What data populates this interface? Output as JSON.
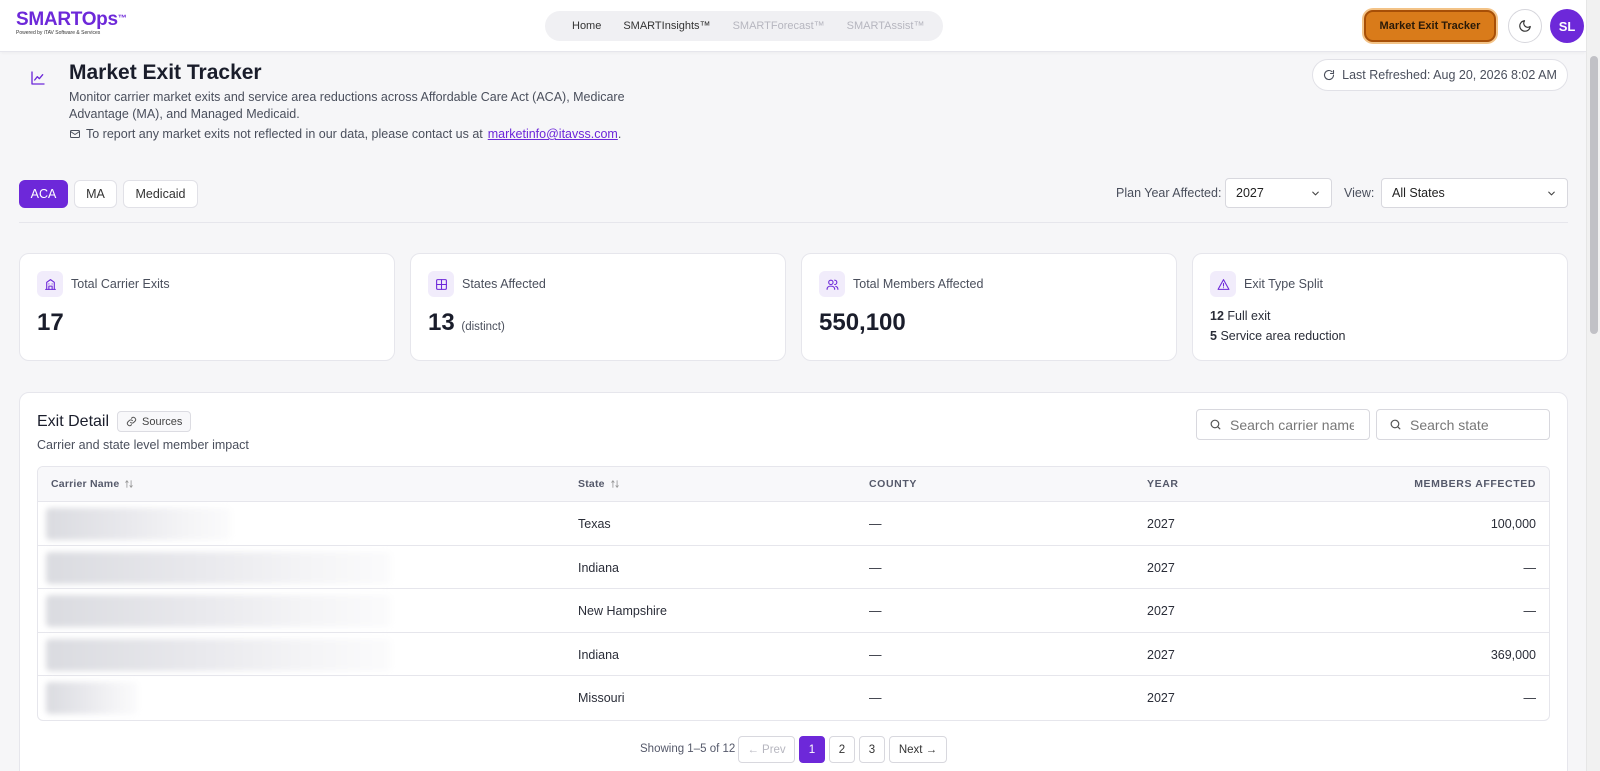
{
  "brand": {
    "name": "SMARTOps",
    "tm": "™",
    "tagline": "Powered by iTAV Software & Services"
  },
  "nav": {
    "items": [
      {
        "label": "Home",
        "muted": false
      },
      {
        "label": "SMARTInsights™",
        "muted": false
      },
      {
        "label": "SMARTForecast™",
        "muted": true
      },
      {
        "label": "SMARTAssist™",
        "muted": true
      }
    ],
    "cta_label": "Market Exit Tracker",
    "avatar_initials": "SL"
  },
  "header": {
    "title": "Market Exit Tracker",
    "description": "Monitor carrier market exits and service area reductions across Affordable Care Act (ACA), Medicare Advantage (MA), and Managed Medicaid.",
    "contact_prefix": "To report any market exits not reflected in our data, please contact us at",
    "contact_email": "marketinfo@itavss.com",
    "contact_suffix": ".",
    "last_refreshed": "Last Refreshed: Aug 20, 2026 8:02 AM"
  },
  "tabs": [
    {
      "label": "ACA",
      "active": true
    },
    {
      "label": "MA",
      "active": false
    },
    {
      "label": "Medicaid",
      "active": false
    }
  ],
  "filters": {
    "plan_year_label": "Plan Year Affected:",
    "plan_year_value": "2027",
    "view_label": "View:",
    "view_value": "All States"
  },
  "kpis": {
    "total_exits": {
      "label": "Total Carrier Exits",
      "value": "17"
    },
    "states_affected": {
      "label": "States Affected",
      "value": "13",
      "note": "(distinct)"
    },
    "members_affected": {
      "label": "Total Members Affected",
      "value": "550,100"
    },
    "exit_split": {
      "label": "Exit Type Split",
      "full_count": "12",
      "full_label": "Full exit",
      "reduction_count": "5",
      "reduction_label": "Service area reduction"
    }
  },
  "detail": {
    "title": "Exit Detail",
    "sources_label": "Sources",
    "subtitle": "Carrier and state level member impact",
    "search_carrier_placeholder": "Search carrier name",
    "search_state_placeholder": "Search state",
    "columns": {
      "carrier": "Carrier Name",
      "state": "State",
      "county": "COUNTY",
      "year": "YEAR",
      "members": "MEMBERS AFFECTED"
    },
    "rows": [
      {
        "state": "Texas",
        "county": "—",
        "year": "2027",
        "members": "100,000"
      },
      {
        "state": "Indiana",
        "county": "—",
        "year": "2027",
        "members": "—"
      },
      {
        "state": "New Hampshire",
        "county": "—",
        "year": "2027",
        "members": "—"
      },
      {
        "state": "Indiana",
        "county": "—",
        "year": "2027",
        "members": "369,000"
      },
      {
        "state": "Missouri",
        "county": "—",
        "year": "2027",
        "members": "—"
      }
    ]
  },
  "pagination": {
    "info": "Showing 1–5 of 12",
    "prev": "← Prev",
    "pages": [
      "1",
      "2",
      "3"
    ],
    "current": "1",
    "next": "Next →"
  },
  "colors": {
    "accent": "#6d28d9",
    "cta": "#d97b1a"
  }
}
